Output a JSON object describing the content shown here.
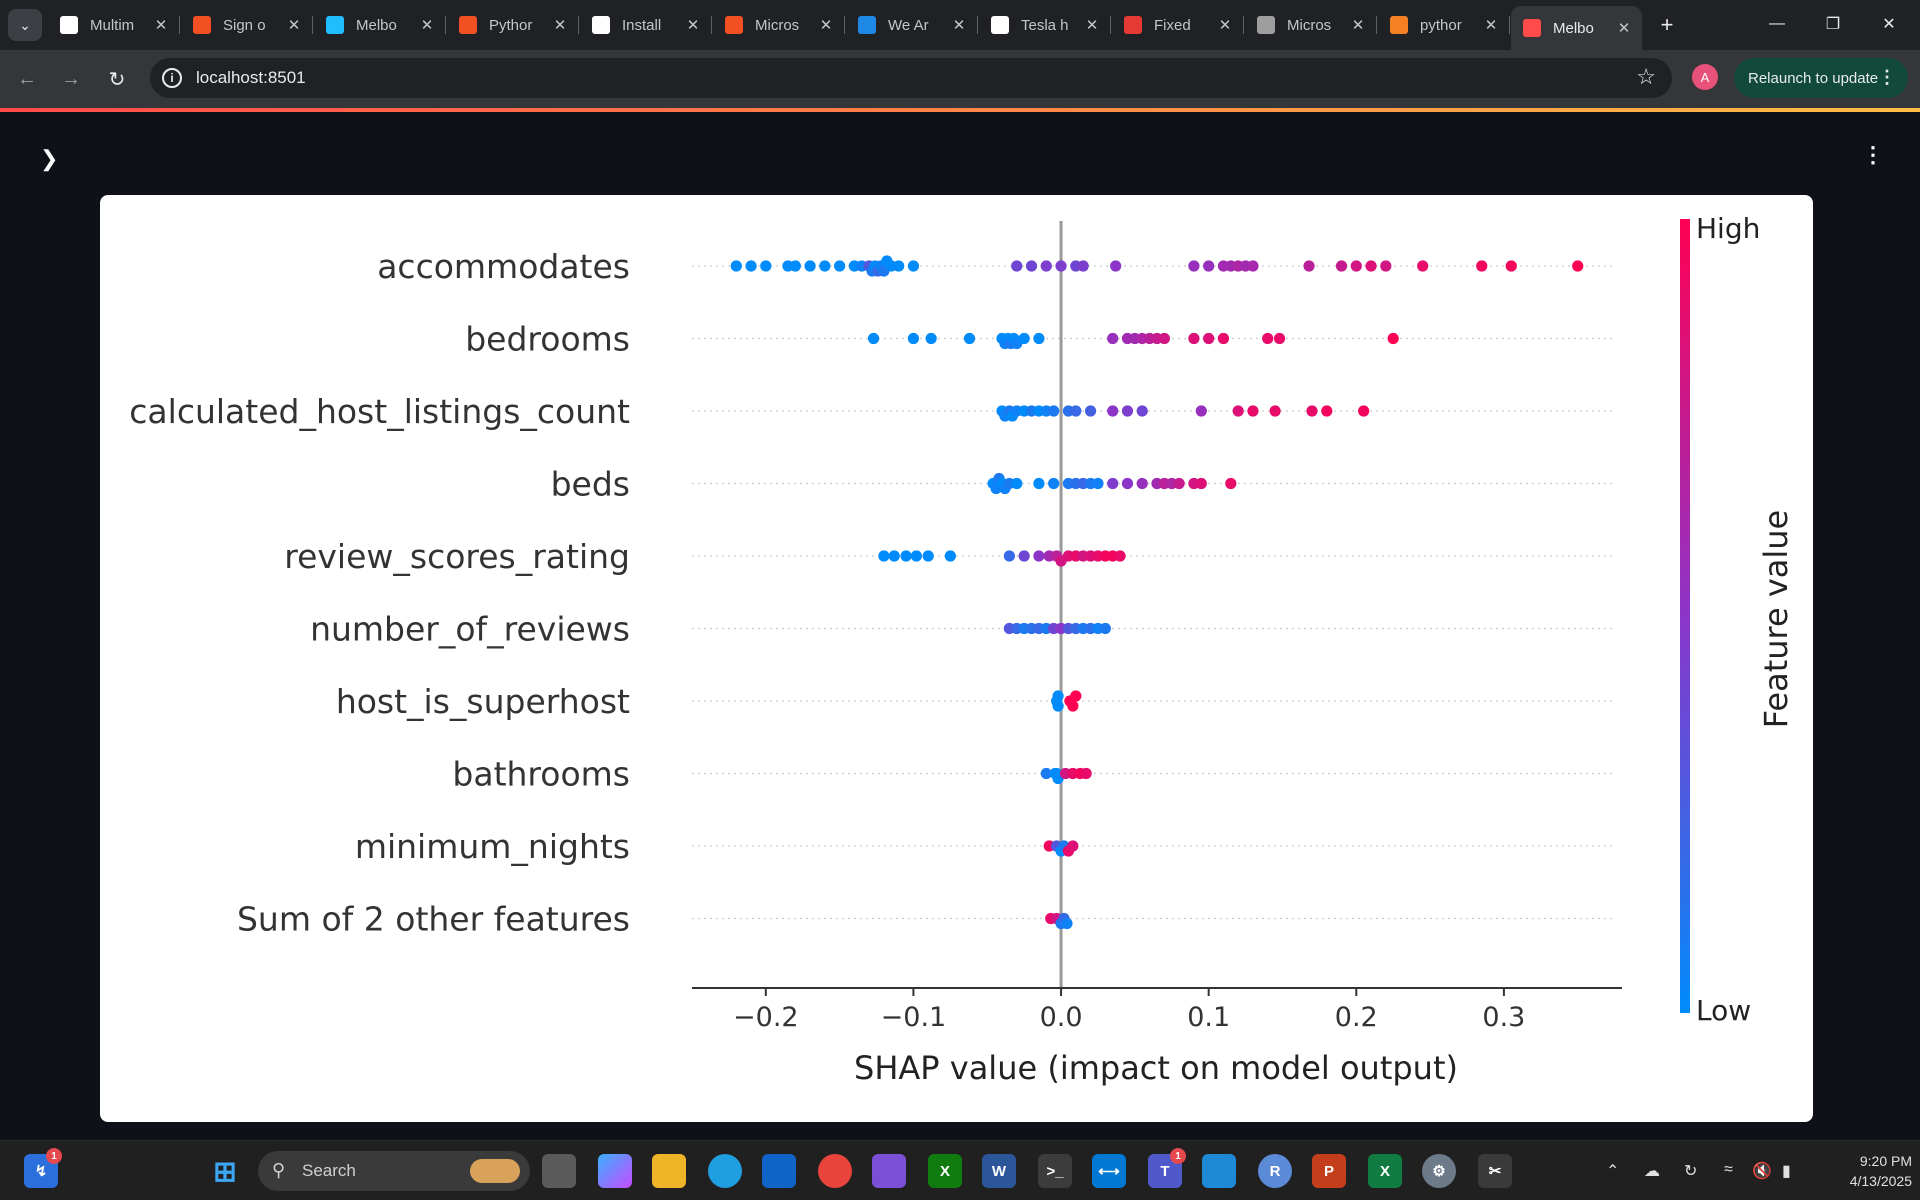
{
  "browser": {
    "tabs": [
      {
        "label": "Multim",
        "icon": "chatgpt-icon",
        "color": "#ffffff"
      },
      {
        "label": "Sign o",
        "icon": "microsoft-icon",
        "color": "#f25022"
      },
      {
        "label": "Melbo",
        "icon": "kaggle-icon",
        "color": "#20beff"
      },
      {
        "label": "Pythor",
        "icon": "microsoft-icon",
        "color": "#f25022"
      },
      {
        "label": "Install",
        "icon": "chatgpt-icon",
        "color": "#ffffff"
      },
      {
        "label": "Micros",
        "icon": "microsoft-icon",
        "color": "#f25022"
      },
      {
        "label": "We Ar",
        "icon": "web-icon",
        "color": "#1e88e5"
      },
      {
        "label": "Tesla h",
        "icon": "chatgpt-icon",
        "color": "#ffffff"
      },
      {
        "label": "Fixed",
        "icon": "instructure-icon",
        "color": "#e53935"
      },
      {
        "label": "Micros",
        "icon": "globe-icon",
        "color": "#9e9e9e"
      },
      {
        "label": "pythor",
        "icon": "stackoverflow-icon",
        "color": "#f48024"
      },
      {
        "label": "Melbo",
        "icon": "streamlit-icon",
        "color": "#ff4b4b",
        "active": true
      }
    ],
    "url": "localhost:8501",
    "profile_initial": "A",
    "relaunch_label": "Relaunch to update"
  },
  "chart_data": {
    "type": "scatter",
    "subtype": "shap-beeswarm",
    "xlabel": "SHAP value (impact on model output)",
    "xlim": [
      -0.25,
      0.38
    ],
    "xticks": [
      -0.2,
      -0.1,
      0.0,
      0.1,
      0.2,
      0.3
    ],
    "xtick_labels": [
      "−0.2",
      "−0.1",
      "0.0",
      "0.1",
      "0.2",
      "0.3"
    ],
    "colorbar": {
      "label": "Feature value",
      "high": "High",
      "low": "Low",
      "low_color": "#008bfb",
      "mid_color": "#8b35c9",
      "high_color": "#ff0052"
    },
    "features": [
      {
        "name": "accommodates",
        "points": [
          [
            -0.22,
            0.0
          ],
          [
            -0.21,
            0.0
          ],
          [
            -0.2,
            0.0
          ],
          [
            -0.185,
            0.0
          ],
          [
            -0.18,
            0.0
          ],
          [
            -0.17,
            0.0
          ],
          [
            -0.16,
            0.0
          ],
          [
            -0.15,
            0.0
          ],
          [
            -0.14,
            0.0
          ],
          [
            -0.135,
            0.05
          ],
          [
            -0.13,
            0.3
          ],
          [
            -0.128,
            0.1
          ],
          [
            -0.126,
            0.0
          ],
          [
            -0.124,
            0.2
          ],
          [
            -0.122,
            0.05
          ],
          [
            -0.12,
            0.1
          ],
          [
            -0.118,
            0.0
          ],
          [
            -0.115,
            0.0
          ],
          [
            -0.11,
            0.0
          ],
          [
            -0.1,
            0.0
          ],
          [
            -0.03,
            0.4
          ],
          [
            -0.02,
            0.4
          ],
          [
            -0.01,
            0.45
          ],
          [
            0.0,
            0.45
          ],
          [
            0.01,
            0.4
          ],
          [
            0.015,
            0.45
          ],
          [
            0.037,
            0.5
          ],
          [
            0.09,
            0.55
          ],
          [
            0.1,
            0.55
          ],
          [
            0.11,
            0.6
          ],
          [
            0.115,
            0.6
          ],
          [
            0.12,
            0.65
          ],
          [
            0.125,
            0.6
          ],
          [
            0.13,
            0.62
          ],
          [
            0.168,
            0.7
          ],
          [
            0.19,
            0.75
          ],
          [
            0.2,
            0.8
          ],
          [
            0.21,
            0.85
          ],
          [
            0.22,
            0.8
          ],
          [
            0.245,
            0.9
          ],
          [
            0.285,
            0.95
          ],
          [
            0.305,
            0.95
          ],
          [
            0.35,
            1.0
          ]
        ]
      },
      {
        "name": "bedrooms",
        "points": [
          [
            -0.127,
            0.0
          ],
          [
            -0.1,
            0.0
          ],
          [
            -0.088,
            0.0
          ],
          [
            -0.062,
            0.0
          ],
          [
            -0.04,
            0.0
          ],
          [
            -0.038,
            0.05
          ],
          [
            -0.036,
            0.0
          ],
          [
            -0.034,
            0.1
          ],
          [
            -0.032,
            0.0
          ],
          [
            -0.03,
            0.05
          ],
          [
            -0.025,
            0.0
          ],
          [
            -0.015,
            0.0
          ],
          [
            0.035,
            0.55
          ],
          [
            0.045,
            0.6
          ],
          [
            0.05,
            0.6
          ],
          [
            0.055,
            0.65
          ],
          [
            0.06,
            0.7
          ],
          [
            0.065,
            0.75
          ],
          [
            0.07,
            0.8
          ],
          [
            0.09,
            0.85
          ],
          [
            0.1,
            0.85
          ],
          [
            0.11,
            0.9
          ],
          [
            0.14,
            0.9
          ],
          [
            0.148,
            0.9
          ],
          [
            0.225,
            1.0
          ]
        ]
      },
      {
        "name": "calculated_host_listings_count",
        "points": [
          [
            -0.04,
            0.0
          ],
          [
            -0.038,
            0.05
          ],
          [
            -0.035,
            0.1
          ],
          [
            -0.033,
            0.0
          ],
          [
            -0.03,
            0.05
          ],
          [
            -0.025,
            0.0
          ],
          [
            -0.02,
            0.1
          ],
          [
            -0.015,
            0.0
          ],
          [
            -0.01,
            0.05
          ],
          [
            -0.005,
            0.1
          ],
          [
            0.005,
            0.15
          ],
          [
            0.01,
            0.2
          ],
          [
            0.02,
            0.25
          ],
          [
            0.035,
            0.5
          ],
          [
            0.045,
            0.45
          ],
          [
            0.055,
            0.4
          ],
          [
            0.095,
            0.55
          ],
          [
            0.12,
            0.85
          ],
          [
            0.13,
            0.9
          ],
          [
            0.145,
            0.9
          ],
          [
            0.17,
            0.9
          ],
          [
            0.18,
            0.95
          ],
          [
            0.205,
            0.95
          ]
        ]
      },
      {
        "name": "beds",
        "points": [
          [
            -0.046,
            0.0
          ],
          [
            -0.044,
            0.05
          ],
          [
            -0.042,
            0.1
          ],
          [
            -0.04,
            0.0
          ],
          [
            -0.038,
            0.05
          ],
          [
            -0.035,
            0.1
          ],
          [
            -0.03,
            0.0
          ],
          [
            -0.015,
            0.0
          ],
          [
            -0.005,
            0.05
          ],
          [
            0.005,
            0.1
          ],
          [
            0.01,
            0.15
          ],
          [
            0.015,
            0.2
          ],
          [
            0.02,
            0.1
          ],
          [
            0.025,
            0.05
          ],
          [
            0.035,
            0.45
          ],
          [
            0.045,
            0.5
          ],
          [
            0.055,
            0.55
          ],
          [
            0.065,
            0.6
          ],
          [
            0.07,
            0.7
          ],
          [
            0.075,
            0.65
          ],
          [
            0.08,
            0.75
          ],
          [
            0.09,
            0.8
          ],
          [
            0.095,
            0.85
          ],
          [
            0.115,
            0.9
          ]
        ]
      },
      {
        "name": "review_scores_rating",
        "points": [
          [
            -0.12,
            0.0
          ],
          [
            -0.113,
            0.0
          ],
          [
            -0.105,
            0.0
          ],
          [
            -0.098,
            0.0
          ],
          [
            -0.09,
            0.0
          ],
          [
            -0.075,
            0.0
          ],
          [
            -0.035,
            0.2
          ],
          [
            -0.025,
            0.4
          ],
          [
            -0.015,
            0.5
          ],
          [
            -0.008,
            0.6
          ],
          [
            -0.003,
            0.7
          ],
          [
            0.0,
            0.8
          ],
          [
            0.005,
            0.85
          ],
          [
            0.01,
            0.9
          ],
          [
            0.015,
            0.8
          ],
          [
            0.02,
            0.85
          ],
          [
            0.025,
            0.9
          ],
          [
            0.03,
            0.95
          ],
          [
            0.035,
            0.95
          ],
          [
            0.04,
            0.9
          ]
        ]
      },
      {
        "name": "number_of_reviews",
        "points": [
          [
            -0.035,
            0.3
          ],
          [
            -0.03,
            0.2
          ],
          [
            -0.025,
            0.1
          ],
          [
            -0.02,
            0.15
          ],
          [
            -0.015,
            0.2
          ],
          [
            -0.01,
            0.1
          ],
          [
            -0.005,
            0.4
          ],
          [
            0.0,
            0.5
          ],
          [
            0.005,
            0.3
          ],
          [
            0.01,
            0.2
          ],
          [
            0.015,
            0.1
          ],
          [
            0.02,
            0.15
          ],
          [
            0.025,
            0.05
          ],
          [
            0.03,
            0.1
          ]
        ]
      },
      {
        "name": "host_is_superhost",
        "points": [
          [
            -0.003,
            0.0
          ],
          [
            -0.002,
            0.0
          ],
          [
            -0.002,
            0.0
          ],
          [
            0.006,
            1.0
          ],
          [
            0.008,
            1.0
          ],
          [
            0.01,
            1.0
          ]
        ]
      },
      {
        "name": "bathrooms",
        "points": [
          [
            -0.01,
            0.1
          ],
          [
            -0.004,
            0.0
          ],
          [
            -0.003,
            0.0
          ],
          [
            -0.002,
            0.0
          ],
          [
            0.003,
            0.8
          ],
          [
            0.008,
            0.9
          ],
          [
            0.013,
            0.95
          ],
          [
            0.017,
            0.9
          ]
        ]
      },
      {
        "name": "minimum_nights",
        "points": [
          [
            -0.008,
            0.95
          ],
          [
            -0.003,
            0.3
          ],
          [
            0.0,
            0.0
          ],
          [
            0.002,
            0.1
          ],
          [
            0.005,
            0.9
          ],
          [
            0.008,
            0.85
          ]
        ]
      },
      {
        "name": "Sum of 2 other features",
        "points": [
          [
            -0.007,
            0.9
          ],
          [
            -0.003,
            0.8
          ],
          [
            0.0,
            0.1
          ],
          [
            0.002,
            0.2
          ],
          [
            0.004,
            0.05
          ]
        ]
      }
    ]
  },
  "taskbar": {
    "search_placeholder": "Search",
    "time": "9:20 PM",
    "date": "4/13/2025"
  }
}
